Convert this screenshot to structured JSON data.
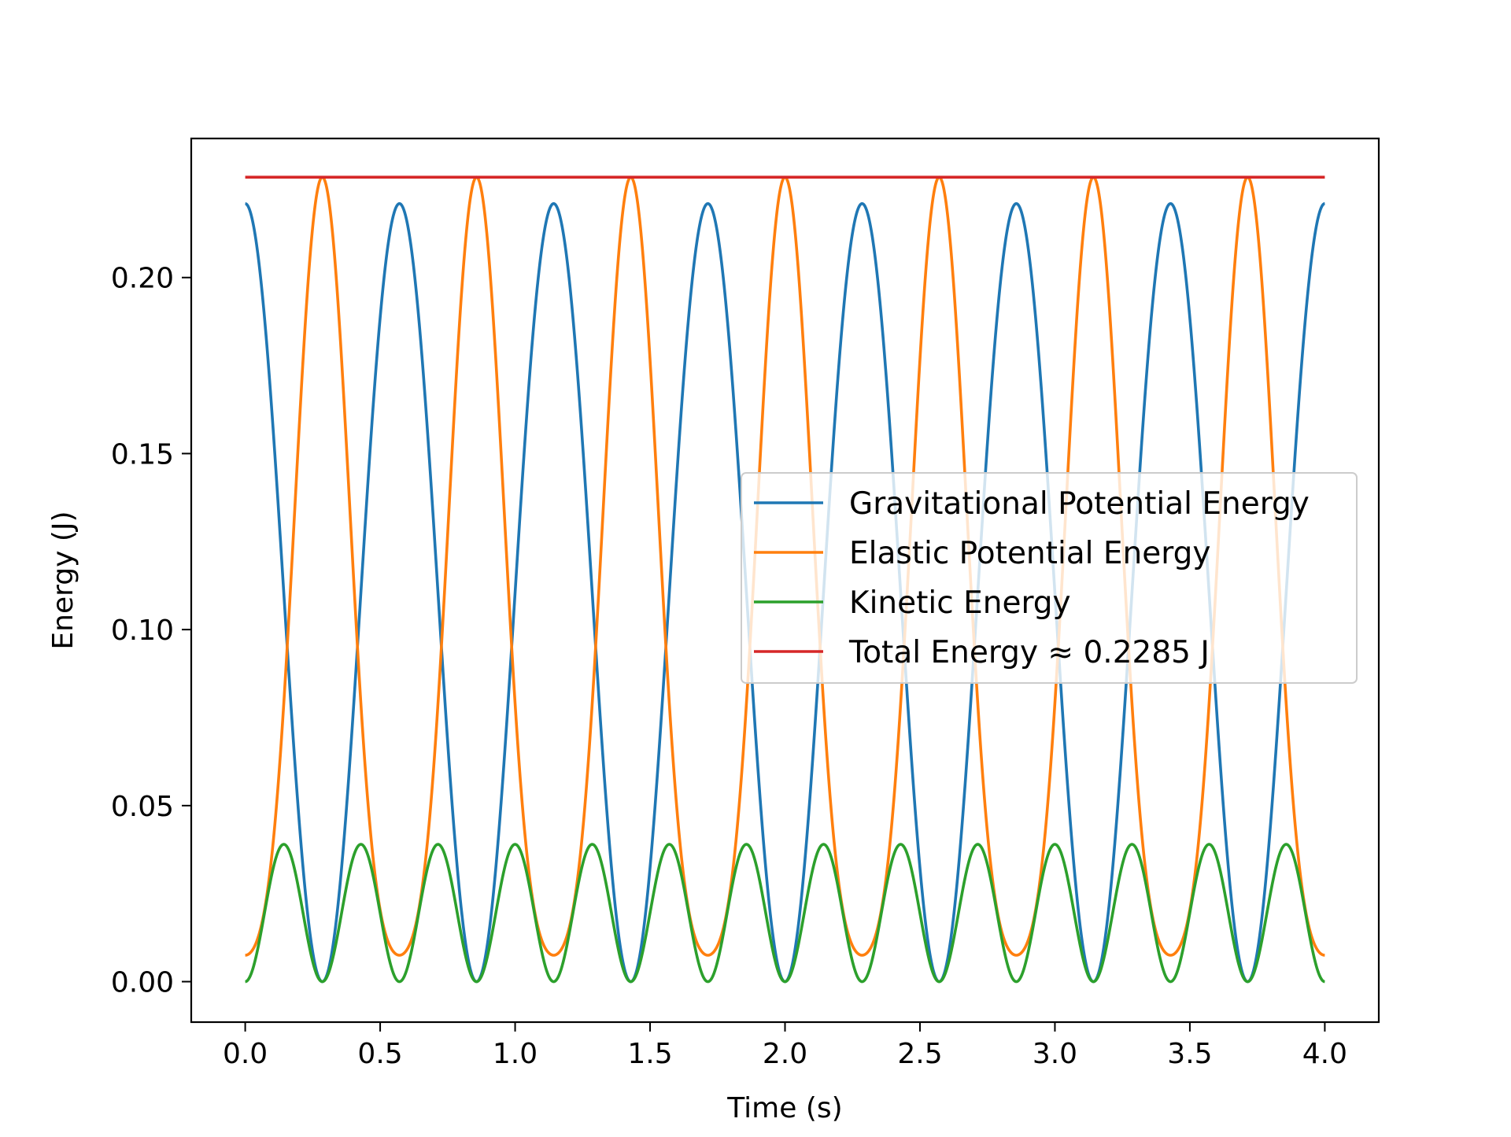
{
  "chart_data": {
    "type": "line",
    "title": "",
    "xlabel": "Time (s)",
    "ylabel": "Energy (J)",
    "xlim": [
      -0.2,
      4.2
    ],
    "ylim": [
      -0.0115,
      0.2395
    ],
    "x_ticks": [
      0.0,
      0.5,
      1.0,
      1.5,
      2.0,
      2.5,
      3.0,
      3.5,
      4.0
    ],
    "x_tick_labels": [
      "0.0",
      "0.5",
      "1.0",
      "1.5",
      "2.0",
      "2.5",
      "3.0",
      "3.5",
      "4.0"
    ],
    "y_ticks": [
      0.0,
      0.05,
      0.1,
      0.15,
      0.2
    ],
    "y_tick_labels": [
      "0.00",
      "0.05",
      "0.10",
      "0.15",
      "0.20"
    ],
    "grid": false,
    "legend_position": "center-right",
    "x_range": [
      0,
      4
    ],
    "oscillation_period_s": 0.5714,
    "series": [
      {
        "name": "Gravitational Potential Energy",
        "color": "#1f77b4",
        "description": "oscillates between 0.000 and 0.221, maximum at t=0",
        "min": 0.0,
        "max": 0.221
      },
      {
        "name": "Elastic Potential Energy",
        "color": "#ff7f0e",
        "description": "oscillates between 0.007 and 0.2285, minimum at t=0",
        "min": 0.007,
        "max": 0.2285
      },
      {
        "name": "Kinetic Energy",
        "color": "#2ca02c",
        "description": "oscillates between 0.000 and 0.039, twice per period",
        "min": 0.0,
        "max": 0.039
      },
      {
        "name": "Total Energy ≈ 0.2285 J",
        "color": "#d62728",
        "description": "constant",
        "value": 0.2285
      }
    ]
  }
}
